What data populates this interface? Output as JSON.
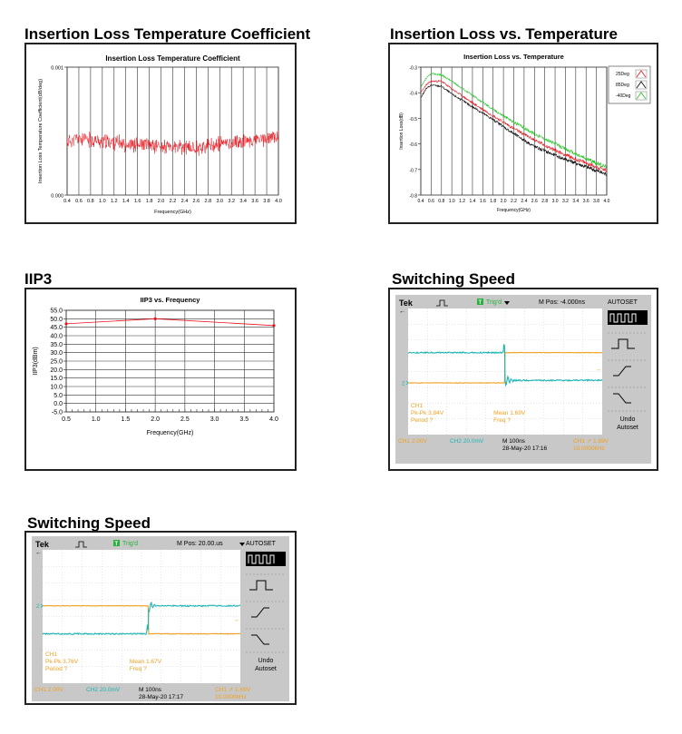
{
  "sections": {
    "s1": "Insertion Loss Temperature Coefficient",
    "s2": "Insertion Loss vs. Temperature",
    "s3": "IIP3",
    "s4": "Switching Speed",
    "s5": "Switching Speed"
  },
  "chart_data": [
    {
      "type": "line",
      "title": "Insertion Loss Temperature Coefficient",
      "xlabel": "Frequency(GHz)",
      "ylabel": "Insertion Loss Temperature Coefficient(dB/deg)",
      "xlim": [
        0.4,
        4.0
      ],
      "ylim": [
        0.0,
        0.001
      ],
      "xticks": [
        "0.4",
        "0.6",
        "0.8",
        "1.0",
        "1.2",
        "1.4",
        "1.6",
        "1.8",
        "2.0",
        "2.2",
        "2.4",
        "2.6",
        "2.8",
        "3.0",
        "3.2",
        "3.4",
        "3.6",
        "3.8",
        "4.0"
      ],
      "yticks": [
        "0.000",
        "0.001"
      ],
      "grid": true,
      "series": [
        {
          "color": "#e8141c",
          "x": [
            0.4,
            0.6,
            0.8,
            1.0,
            1.2,
            1.4,
            1.6,
            1.8,
            2.0,
            2.2,
            2.4,
            2.6,
            2.8,
            3.0,
            3.2,
            3.4,
            3.6,
            3.8,
            4.0
          ],
          "values": [
            0.00042,
            0.00044,
            0.00043,
            0.00042,
            0.00041,
            0.0004,
            0.00039,
            0.00039,
            0.00038,
            0.00037,
            0.00037,
            0.00037,
            0.00038,
            0.0004,
            0.00041,
            0.00042,
            0.00043,
            0.00044,
            0.00046
          ]
        }
      ]
    },
    {
      "type": "line",
      "title": "Insertion Loss vs. Temperature",
      "xlabel": "Frequency(GHz)",
      "ylabel": "Insertion Loss(dB)",
      "xlim": [
        0.4,
        4.0
      ],
      "ylim": [
        -0.8,
        -0.3
      ],
      "xticks": [
        "0.4",
        "0.6",
        "0.8",
        "1.0",
        "1.2",
        "1.4",
        "1.6",
        "1.8",
        "2.0",
        "2.2",
        "2.4",
        "2.6",
        "2.8",
        "3.0",
        "3.2",
        "3.4",
        "3.6",
        "3.8",
        "4.0"
      ],
      "yticks": [
        "-0.3",
        "-0.4",
        "-0.5",
        "-0.6",
        "-0.7",
        "-0.8"
      ],
      "grid": true,
      "legend": "top-right",
      "series": [
        {
          "name": "25Deg",
          "color": "#e8141c",
          "x": [
            0.4,
            0.5,
            0.6,
            0.8,
            1.0,
            1.4,
            1.8,
            2.2,
            2.6,
            3.0,
            3.4,
            3.8,
            4.0
          ],
          "values": [
            -0.4,
            -0.37,
            -0.355,
            -0.355,
            -0.385,
            -0.44,
            -0.49,
            -0.54,
            -0.585,
            -0.625,
            -0.66,
            -0.69,
            -0.705
          ]
        },
        {
          "name": "85Deg",
          "color": "#000000",
          "x": [
            0.4,
            0.5,
            0.6,
            0.8,
            1.0,
            1.4,
            1.8,
            2.2,
            2.6,
            3.0,
            3.4,
            3.8,
            4.0
          ],
          "values": [
            -0.42,
            -0.385,
            -0.37,
            -0.375,
            -0.405,
            -0.455,
            -0.505,
            -0.56,
            -0.61,
            -0.645,
            -0.675,
            -0.705,
            -0.72
          ]
        },
        {
          "name": "-40Deg",
          "color": "#22c322",
          "x": [
            0.4,
            0.5,
            0.6,
            0.8,
            1.0,
            1.4,
            1.8,
            2.2,
            2.6,
            3.0,
            3.4,
            3.8,
            4.0
          ],
          "values": [
            -0.38,
            -0.345,
            -0.325,
            -0.33,
            -0.355,
            -0.41,
            -0.465,
            -0.515,
            -0.56,
            -0.6,
            -0.64,
            -0.675,
            -0.69
          ]
        }
      ]
    },
    {
      "type": "line",
      "title": "IIP3 vs. Frequency",
      "xlabel": "Frequency(GHz)",
      "ylabel": "IIP3(dBm)",
      "xlim": [
        0.5,
        4.0
      ],
      "ylim": [
        -5.0,
        55.0
      ],
      "xticks": [
        "0.5",
        "1.0",
        "1.5",
        "2.0",
        "2.5",
        "3.0",
        "3.5",
        "4.0"
      ],
      "yticks": [
        "55.0",
        "50.0",
        "45.0",
        "40.0",
        "35.0",
        "30.0",
        "25.0",
        "20.0",
        "15.0",
        "10.0",
        "5.0",
        "0.0",
        "-5.0"
      ],
      "grid": true,
      "series": [
        {
          "color": "#e8141c",
          "x": [
            0.5,
            2.0,
            4.0
          ],
          "values": [
            47.0,
            50.0,
            46.0
          ]
        }
      ]
    }
  ],
  "scope1": {
    "brand": "Tek",
    "status": "Trig'd",
    "mpos": "M Pos: -4.000ns",
    "autoset": "AUTOSET",
    "ch1_mark": "1",
    "ch2_mark": "2",
    "ch1_meas": "CH1",
    "pkpk": "Pk-Pk 3.84V",
    "period": "Period ?",
    "mean": "Mean 1.69V",
    "freq": "Freq ?",
    "ch1_scale": "CH1  2.00V",
    "ch2_scale": "CH2  20.0mV",
    "timebase": "M 100ns",
    "date": "28-May-20 17:16",
    "trig": "CH1 ↗ 1.69V",
    "trig_freq": "10.0000kHz",
    "undo": "Undo",
    "undo2": "Autoset"
  },
  "scope2": {
    "brand": "Tek",
    "status": "Trig'd",
    "mpos": "M Pos: 20.00.us",
    "autoset": "AUTOSET",
    "ch1_mark": "1",
    "ch2_mark": "2",
    "ch1_meas": "CH1",
    "pkpk": "Pk-Pk 3.76V",
    "period": "Period ?",
    "mean": "Mean 1.67V",
    "freq": "Freq ?",
    "ch1_scale": "CH1  2.00V",
    "ch2_scale": "CH2  20.0mV",
    "timebase": "M 100ns",
    "date": "28-May-20 17:17",
    "trig": "CH1 ↗ 1.69V",
    "trig_freq": "10.0000kHz",
    "undo": "Undo",
    "undo2": "Autoset"
  },
  "colors": {
    "ch1": "#f0a020",
    "ch2": "#1cb4b4",
    "red": "#e8141c",
    "green": "#22c322"
  }
}
